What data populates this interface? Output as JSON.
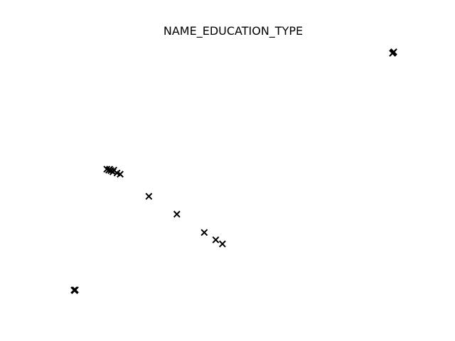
{
  "chart_data": {
    "type": "scatter",
    "title": "NAME_EDUCATION_TYPE",
    "xlabel": "",
    "ylabel": "",
    "axes_visible": false,
    "grid": false,
    "legend": "none",
    "marker": "x",
    "marker_color": "#000000",
    "xlim": [
      0,
      100
    ],
    "ylim": [
      0,
      100
    ],
    "points": [
      {
        "x": 0.0,
        "y": 0.0
      },
      {
        "x": 0.2,
        "y": 0.3
      },
      {
        "x": -0.2,
        "y": 0.2
      },
      {
        "x": 10.1,
        "y": 51.0
      },
      {
        "x": 10.7,
        "y": 50.6
      },
      {
        "x": 11.0,
        "y": 51.0
      },
      {
        "x": 11.4,
        "y": 50.4
      },
      {
        "x": 12.0,
        "y": 49.9
      },
      {
        "x": 12.3,
        "y": 50.6
      },
      {
        "x": 13.3,
        "y": 49.4
      },
      {
        "x": 14.3,
        "y": 48.9
      },
      {
        "x": 23.3,
        "y": 39.6
      },
      {
        "x": 32.1,
        "y": 32.1
      },
      {
        "x": 40.7,
        "y": 24.4
      },
      {
        "x": 44.3,
        "y": 21.3
      },
      {
        "x": 46.4,
        "y": 19.6
      },
      {
        "x": 100.0,
        "y": 100.0
      },
      {
        "x": 100.2,
        "y": 100.3
      },
      {
        "x": 99.8,
        "y": 99.7
      }
    ]
  }
}
